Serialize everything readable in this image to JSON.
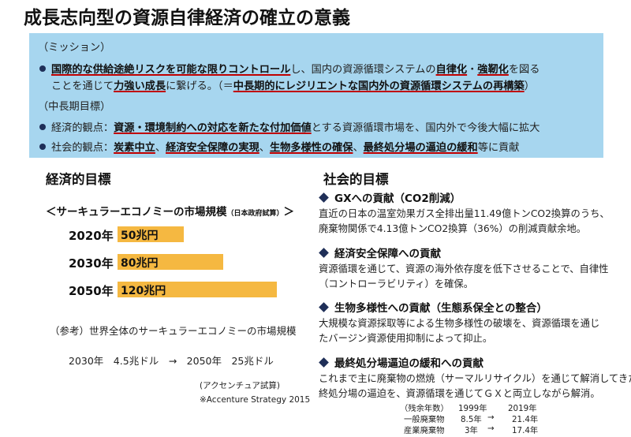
{
  "title": "成長志向型の資源自律経済の確立の意義",
  "mission": {
    "label": "（ミッション）",
    "line1_a": "国際的な供給途絶リスクを可能な限りコントロール",
    "line1_b": "し、国内の資源循環システムの",
    "line1_c": "自律化",
    "line1_d": "・",
    "line1_e": "強靭化",
    "line1_f": "を図る",
    "line2_a": "ことを通じて",
    "line2_b": "力強い成長",
    "line2_c": "に繋げる。（＝",
    "line2_d": "中長期的にレジリエントな国内外の資源循環システムの再構築",
    "line2_e": "）",
    "goal_label": "（中長期目標）",
    "eco_a": "経済的観点：",
    "eco_b": "資源・環境制約への対応を新たな付加価値",
    "eco_c": "とする資源循環市場を、国内外で今後大幅に拡大",
    "soc_a": "社会的観点：",
    "soc_b": "炭素中立",
    "soc_c": "、",
    "soc_d": "経済安全保障の実現",
    "soc_e": "、",
    "soc_f": "生物多様性の確保",
    "soc_g": "、",
    "soc_h": "最終処分場の逼迫の緩和",
    "soc_i": "等に貢献"
  },
  "economic": {
    "heading": "経済的目標",
    "chart_title": "＜サーキュラーエコノミーの市場規模",
    "chart_sub": "（日本政府試算）",
    "chart_close": "＞",
    "ref_line": "（参考）世界全体のサーキュラーエコノミーの市場規模",
    "ref_values": "2030年　4.5兆ドル　→　2050年　25兆ドル",
    "ref_source1": "(アクセンチュア試算)",
    "ref_source2": "※Accenture Strategy 2015"
  },
  "chart_data": {
    "type": "bar",
    "categories": [
      "2020年",
      "2030年",
      "2050年"
    ],
    "values": [
      50,
      80,
      120
    ],
    "value_labels": [
      "50兆円",
      "80兆円",
      "120兆円"
    ],
    "color": "#f5b841"
  },
  "social": {
    "heading": "社会的目標",
    "items": [
      {
        "head": "GXへの貢献（CO2削減）",
        "body1": "直近の日本の温室効果ガス全排出量11.49億トンCO2換算のうち、",
        "body2": "廃棄物関係で4.13億トンCO2換算（36%）の削減貢献余地。"
      },
      {
        "head": "経済安全保障への貢献",
        "body1": "資源循環を通じて、資源の海外依存度を低下させることで、自律性",
        "body2": "（コントローラビリティ）を確保。"
      },
      {
        "head": "生物多様性への貢献（生態系保全との整合）",
        "body1": "大規模な資源採取等による生物多様性の破壊を、資源循環を通じ",
        "body2": "たバージン資源使用抑制によって抑止。"
      },
      {
        "head": "最終処分場逼迫の緩和への貢献",
        "body1": "これまで主に廃棄物の燃焼（サーマルリサイクル）を通じて解消してきた最",
        "body2": "終処分場の逼迫を、資源循環を通じてＧＸと両立しながら解消。"
      }
    ],
    "stats": {
      "header": [
        "（残余年数）",
        "1999年",
        "2019年"
      ],
      "rows": [
        [
          "一般廃棄物",
          "8.5年",
          "→",
          "21.4年"
        ],
        [
          "産業廃棄物",
          "3年",
          "→",
          "17.4年"
        ]
      ]
    }
  }
}
